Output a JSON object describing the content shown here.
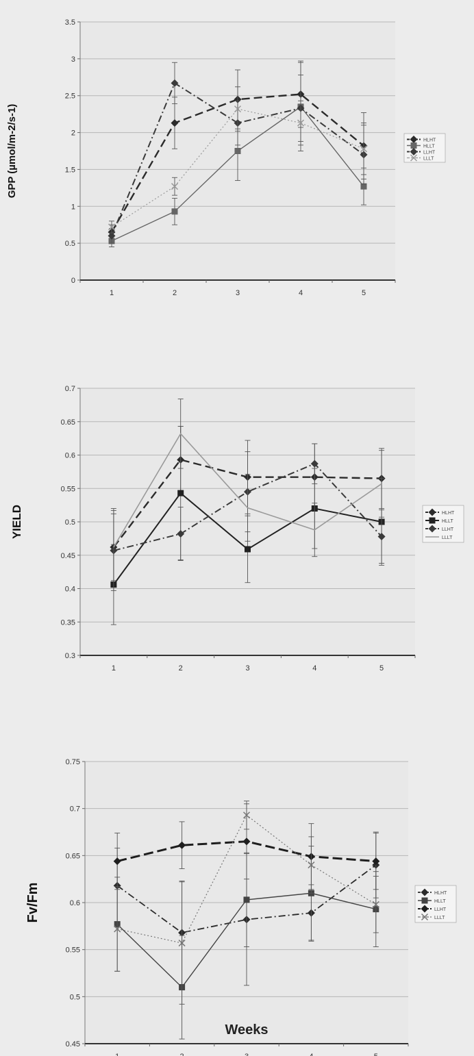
{
  "chart_data": [
    {
      "type": "line",
      "title": "",
      "xlabel": "",
      "ylabel": "GPP (µmol/m-2/s-1)",
      "ylim": [
        0,
        3.5
      ],
      "yticks": [
        "0",
        "0.5",
        "1",
        "1.5",
        "2",
        "2.5",
        "3",
        "3.5"
      ],
      "categories": [
        "1",
        "2",
        "3",
        "4",
        "5"
      ],
      "grid": true,
      "legend_position": "right",
      "series": [
        {
          "name": "HLHT",
          "values": [
            0.65,
            2.13,
            2.45,
            2.52,
            1.82
          ],
          "errors": [
            0.1,
            0.35,
            0.4,
            0.45,
            0.45
          ],
          "color": "#2b2b2b",
          "dash": "12 6",
          "marker": "diamond",
          "width": 2.4
        },
        {
          "name": "HLLT",
          "values": [
            0.53,
            0.93,
            1.75,
            2.35,
            1.27
          ],
          "errors": [
            0.08,
            0.18,
            0.4,
            0.6,
            0.25
          ],
          "color": "#666666",
          "dash": "",
          "marker": "square",
          "width": 1.4
        },
        {
          "name": "LLHT",
          "values": [
            0.6,
            2.67,
            2.13,
            2.33,
            1.7
          ],
          "errors": [
            0.1,
            0.28,
            0.3,
            0.45,
            0.4
          ],
          "color": "#3a3a3a",
          "dash": "10 4 2 4",
          "marker": "diamond",
          "width": 2.0
        },
        {
          "name": "LLLT",
          "values": [
            0.72,
            1.27,
            2.32,
            2.13,
            1.78
          ],
          "errors": [
            0.08,
            0.12,
            0.3,
            0.3,
            0.35
          ],
          "color": "#999999",
          "dash": "2 3",
          "marker": "x",
          "width": 1.2
        }
      ]
    },
    {
      "type": "line",
      "title": "",
      "xlabel": "",
      "ylabel": "YIELD",
      "ylim": [
        0.3,
        0.7
      ],
      "yticks": [
        "0.3",
        "0.35",
        "0.4",
        "0.45",
        "0.5",
        "0.55",
        "0.6",
        "0.65",
        "0.7"
      ],
      "categories": [
        "1",
        "2",
        "3",
        "4",
        "5"
      ],
      "grid": true,
      "legend_position": "right",
      "series": [
        {
          "name": "HLHT",
          "values": [
            0.462,
            0.593,
            0.567,
            0.567,
            0.565
          ],
          "errors": [
            0.058,
            0.05,
            0.055,
            0.05,
            0.045
          ],
          "color": "#2b2b2b",
          "dash": "12 6",
          "marker": "diamond",
          "width": 2.4
        },
        {
          "name": "HLLT",
          "values": [
            0.406,
            0.543,
            0.459,
            0.52,
            0.5
          ],
          "errors": [
            0.06,
            0.1,
            0.05,
            0.06,
            0.065
          ],
          "color": "#222222",
          "dash": "",
          "marker": "square",
          "width": 2.0
        },
        {
          "name": "LLHT",
          "values": [
            0.457,
            0.482,
            0.545,
            0.587,
            0.478
          ],
          "errors": [
            0.06,
            0.04,
            0.06,
            0.03,
            0.04
          ],
          "color": "#3a3a3a",
          "dash": "10 4 2 4",
          "marker": "diamond",
          "width": 2.0
        },
        {
          "name": "LLLT",
          "values": [
            0.462,
            0.632,
            0.521,
            0.488,
            0.557
          ],
          "errors": [
            0.05,
            0.052,
            0.05,
            0.04,
            0.05
          ],
          "color": "#9a9a9a",
          "dash": "",
          "marker": "none",
          "width": 1.6
        }
      ]
    },
    {
      "type": "line",
      "title": "",
      "xlabel": "Weeks",
      "ylabel": "Fv/Fm",
      "ylim": [
        0.45,
        0.75
      ],
      "yticks": [
        "0.45",
        "0.5",
        "0.55",
        "0.6",
        "0.65",
        "0.7",
        "0.75"
      ],
      "categories": [
        "1",
        "2",
        "3",
        "4",
        "5"
      ],
      "grid": true,
      "legend_position": "right",
      "series": [
        {
          "name": "HLHT",
          "values": [
            0.618,
            0.568,
            0.582,
            0.589,
            0.64
          ],
          "errors": [
            0.04,
            0.055,
            0.07,
            0.03,
            0.035
          ],
          "color": "#2b2b2b",
          "dash": "10 4 2 4",
          "marker": "diamond",
          "width": 1.8
        },
        {
          "name": "HLLT",
          "values": [
            0.577,
            0.51,
            0.603,
            0.61,
            0.593
          ],
          "errors": [
            0.05,
            0.055,
            0.05,
            0.05,
            0.04
          ],
          "color": "#444444",
          "dash": "",
          "marker": "square",
          "width": 1.4
        },
        {
          "name": "LLHT",
          "values": [
            0.644,
            0.661,
            0.665,
            0.649,
            0.644
          ],
          "errors": [
            0.03,
            0.025,
            0.04,
            0.035,
            0.03
          ],
          "color": "#1e1e1e",
          "dash": "14 6",
          "marker": "diamond",
          "width": 3.0
        },
        {
          "name": "LLLT",
          "values": [
            0.572,
            0.557,
            0.693,
            0.64,
            0.598
          ],
          "errors": [
            0.045,
            0.065,
            0.015,
            0.03,
            0.03
          ],
          "color": "#777777",
          "dash": "2 3",
          "marker": "x",
          "width": 1.2
        }
      ]
    }
  ]
}
